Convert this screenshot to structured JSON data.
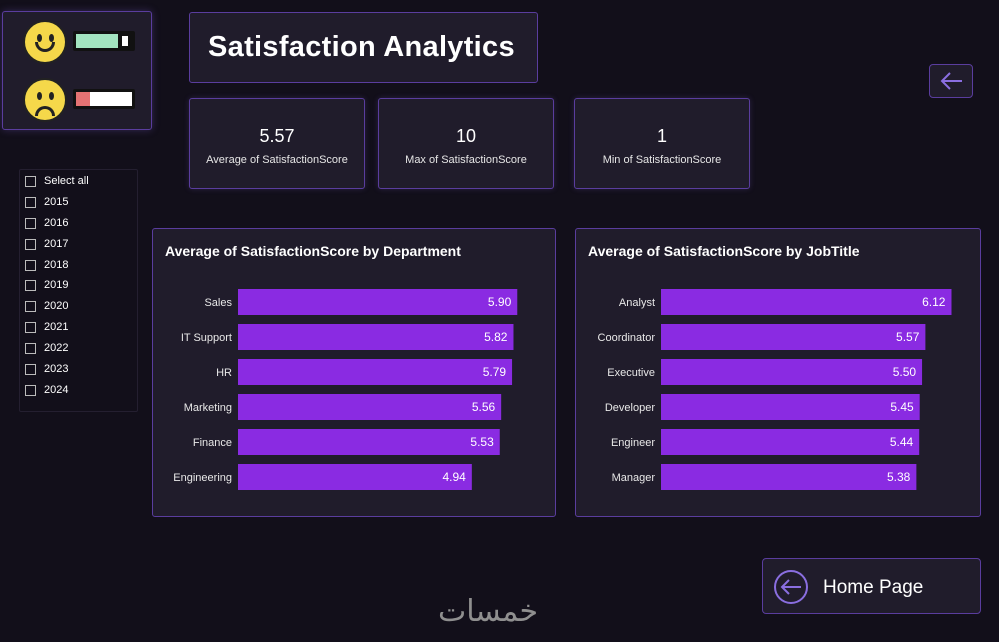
{
  "page": {
    "title": "Satisfaction Analytics"
  },
  "colors": {
    "accent": "#8a2be2",
    "border": "#5a3d9e",
    "card": "#201c2b",
    "bg": "#120f1a",
    "happyBar": "#a3e4c0",
    "sadBar": "#e57373"
  },
  "logo": {
    "happy_icon": "smiling-face-icon",
    "sad_icon": "frowning-face-icon",
    "happy_level": 0.75,
    "sad_level": 0.25
  },
  "kpis": [
    {
      "value": "5.57",
      "label": "Average of SatisfactionScore"
    },
    {
      "value": "10",
      "label": "Max of SatisfactionScore"
    },
    {
      "value": "1",
      "label": "Min of SatisfactionScore"
    }
  ],
  "slicer": {
    "items": [
      "Select all",
      "2015",
      "2016",
      "2017",
      "2018",
      "2019",
      "2020",
      "2021",
      "2022",
      "2023",
      "2024"
    ]
  },
  "buttons": {
    "back_icon": "arrow-left-icon",
    "home_label": "Home Page",
    "home_icon": "circle-arrow-left-icon"
  },
  "watermark": "خمسات",
  "chart_data": [
    {
      "type": "bar",
      "orientation": "horizontal",
      "title": "Average of SatisfactionScore by Department",
      "categories": [
        "Sales",
        "IT Support",
        "HR",
        "Marketing",
        "Finance",
        "Engineering"
      ],
      "values": [
        5.9,
        5.82,
        5.79,
        5.56,
        5.53,
        4.94
      ],
      "labels": [
        "5.90",
        "5.82",
        "5.79",
        "5.56",
        "5.53",
        "4.94"
      ],
      "xlim": [
        0,
        7.5
      ]
    },
    {
      "type": "bar",
      "orientation": "horizontal",
      "title": "Average of SatisfactionScore by JobTitle",
      "categories": [
        "Analyst",
        "Coordinator",
        "Executive",
        "Developer",
        "Engineer",
        "Manager"
      ],
      "values": [
        6.12,
        5.57,
        5.5,
        5.45,
        5.44,
        5.38
      ],
      "labels": [
        "6.12",
        "5.57",
        "5.50",
        "5.45",
        "5.44",
        "5.38"
      ],
      "xlim": [
        0,
        7.5
      ]
    }
  ]
}
